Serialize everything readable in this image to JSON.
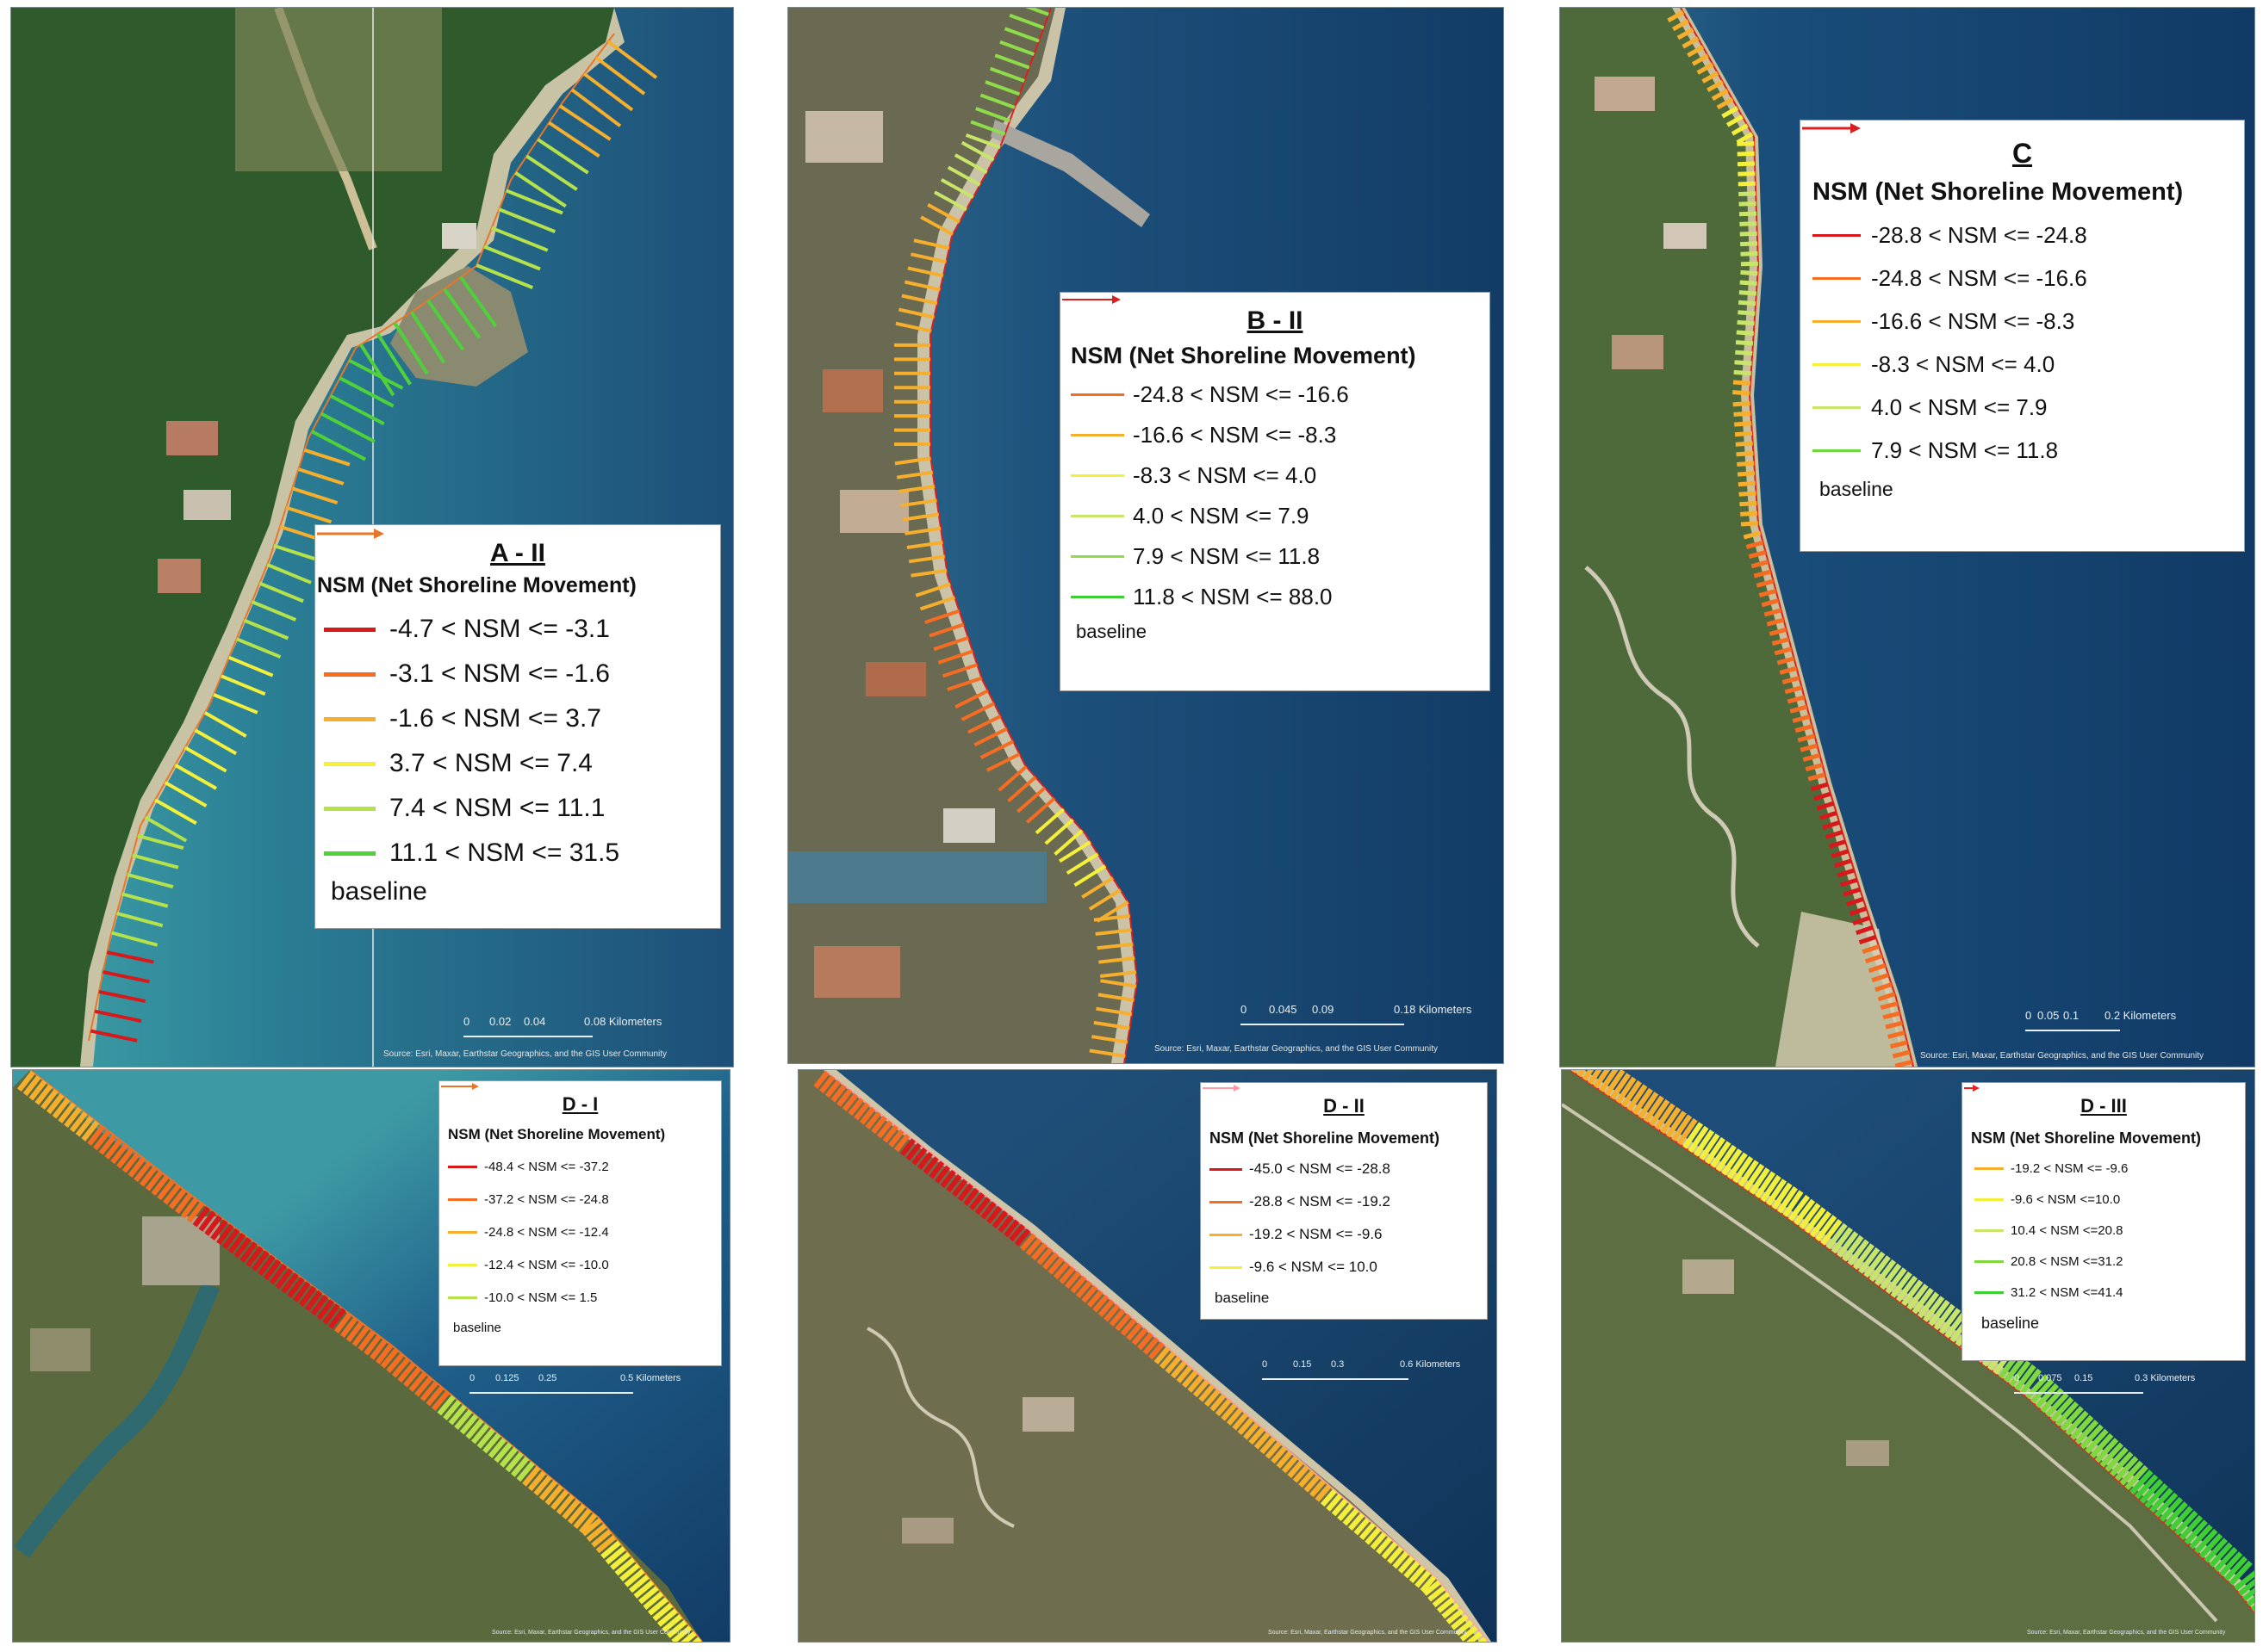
{
  "colors": {
    "sea_deep": "#0f3a6a",
    "sea_mid": "#1f5a84",
    "sea_shallow": "#3a94a2",
    "land_forest": "#2a5a2c",
    "land_olive": "#5e6a3a",
    "land_bare": "#a09a78",
    "settlement": "#b7a894",
    "road": "#cfcab8"
  },
  "panels": [
    {
      "id": "A-II",
      "legend": {
        "title": "A - II",
        "subtitle": "NSM (Net Shoreline Movement)",
        "classes": [
          {
            "label": "-4.7 < NSM <=  -3.1",
            "color": "#d7191c"
          },
          {
            "label": "-3.1 < NSM <=  -1.6",
            "color": "#f46d22"
          },
          {
            "label": "-1.6 < NSM <=   3.7",
            "color": "#f6ae2d"
          },
          {
            "label": "3.7 < NSM <=   7.4",
            "color": "#f3ef3a"
          },
          {
            "label": "7.4 < NSM <= 11.1",
            "color": "#b5e24a"
          },
          {
            "label": "11.1 < NSM <=  31.5",
            "color": "#4fd13a"
          }
        ],
        "baseline_label": "baseline",
        "baseline_color": "#e8762a"
      },
      "scalebar": {
        "ticks": [
          "0",
          "0.02",
          "0.04",
          "0.08 Kilometers"
        ]
      },
      "credit": "Source: Esri, Maxar, Earthstar Geographics, and the GIS User Community"
    },
    {
      "id": "B-II",
      "legend": {
        "title": "B - II",
        "subtitle": "NSM (Net Shoreline Movement)",
        "classes": [
          {
            "label": "-24.8 < NSM <= -16.6",
            "color": "#f46d22"
          },
          {
            "label": "-16.6 < NSM <=   -8.3",
            "color": "#f6ae2d"
          },
          {
            "label": "-8.3 < NSM <=    4.0",
            "color": "#f3ef3a"
          },
          {
            "label": "4.0 < NSM <=    7.9",
            "color": "#c8e56a"
          },
          {
            "label": "7.9 < NSM <=  11.8",
            "color": "#8fdc4a"
          },
          {
            "label": "11.8 < NSM <=  88.0",
            "color": "#3fcf35"
          }
        ],
        "baseline_label": "baseline",
        "baseline_color": "#d82020"
      },
      "scalebar": {
        "ticks": [
          "0",
          "0.045",
          "0.09",
          "0.18 Kilometers"
        ]
      },
      "credit": "Source: Esri, Maxar, Earthstar Geographics, and the GIS User Community"
    },
    {
      "id": "C",
      "legend": {
        "title": "C",
        "subtitle": "NSM (Net Shoreline Movement)",
        "classes": [
          {
            "label": "-28.8 < NSM <= -24.8",
            "color": "#d7191c"
          },
          {
            "label": "-24.8 < NSM <= -16.6",
            "color": "#f46d22"
          },
          {
            "label": "-16.6 < NSM <=   -8.3",
            "color": "#f6ae2d"
          },
          {
            "label": "-8.3 < NSM <=    4.0",
            "color": "#f3ef3a"
          },
          {
            "label": "4.0 < NSM <=    7.9",
            "color": "#c8e56a"
          },
          {
            "label": "7.9 < NSM <=  11.8",
            "color": "#6fd840"
          }
        ],
        "baseline_label": "baseline",
        "baseline_color": "#d82020"
      },
      "scalebar": {
        "ticks": [
          "0",
          "0.05",
          "0.1",
          "0.2 Kilometers"
        ]
      },
      "credit": "Source: Esri, Maxar, Earthstar Geographics, and the GIS User Community"
    },
    {
      "id": "D-I",
      "legend": {
        "title": "D - I",
        "subtitle": "NSM (Net Shoreline Movement)",
        "classes": [
          {
            "label": "-48.4 < NSM <= -37.2",
            "color": "#d7191c"
          },
          {
            "label": "-37.2 < NSM <= -24.8",
            "color": "#f46d22"
          },
          {
            "label": "-24.8 < NSM <= -12.4",
            "color": "#f6ae2d"
          },
          {
            "label": "-12.4 < NSM <= -10.0",
            "color": "#f3ef3a"
          },
          {
            "label": "-10.0 < NSM <=    1.5",
            "color": "#b5e24a"
          }
        ],
        "baseline_label": "baseline",
        "baseline_color": "#e8762a"
      },
      "scalebar": {
        "ticks": [
          "0",
          "0.125",
          "0.25",
          "0.5 Kilometers"
        ]
      },
      "credit": "Source: Esri, Maxar, Earthstar Geographics, and the GIS User Community"
    },
    {
      "id": "D-II",
      "legend": {
        "title": "D - II",
        "subtitle": "NSM (Net Shoreline Movement)",
        "classes": [
          {
            "label": "-45.0 < NSM <= -28.8",
            "color": "#d7191c"
          },
          {
            "label": "-28.8 < NSM <= -19.2",
            "color": "#f46d22"
          },
          {
            "label": "-19.2 < NSM <=   -9.6",
            "color": "#f6ae2d"
          },
          {
            "label": "-9.6 < NSM <=  10.0",
            "color": "#f3ef3a"
          }
        ],
        "baseline_label": "baseline",
        "baseline_color": "#ff9aa6"
      },
      "scalebar": {
        "ticks": [
          "0",
          "0.15",
          "0.3",
          "0.6 Kilometers"
        ]
      },
      "credit": "Source: Esri, Maxar, Earthstar Geographics, and the GIS User Community"
    },
    {
      "id": "D-III",
      "legend": {
        "title": "D - III",
        "subtitle": "NSM (Net Shoreline Movement)",
        "classes": [
          {
            "label": "-19.2 < NSM <= -9.6",
            "color": "#f6ae2d"
          },
          {
            "label": "-9.6 < NSM <=10.0",
            "color": "#f3ef3a"
          },
          {
            "label": "10.4 < NSM <=20.8",
            "color": "#c8e56a"
          },
          {
            "label": "20.8 < NSM <=31.2",
            "color": "#7fd93e"
          },
          {
            "label": "31.2 < NSM <=41.4",
            "color": "#3fcf35"
          }
        ],
        "baseline_label": "baseline",
        "baseline_color": "#e82020"
      },
      "scalebar": {
        "ticks": [
          "0",
          "0.075",
          "0.15",
          "0.3 Kilometers"
        ]
      },
      "credit": "Source: Esri, Maxar, Earthstar Geographics, and the GIS User Community"
    }
  ]
}
